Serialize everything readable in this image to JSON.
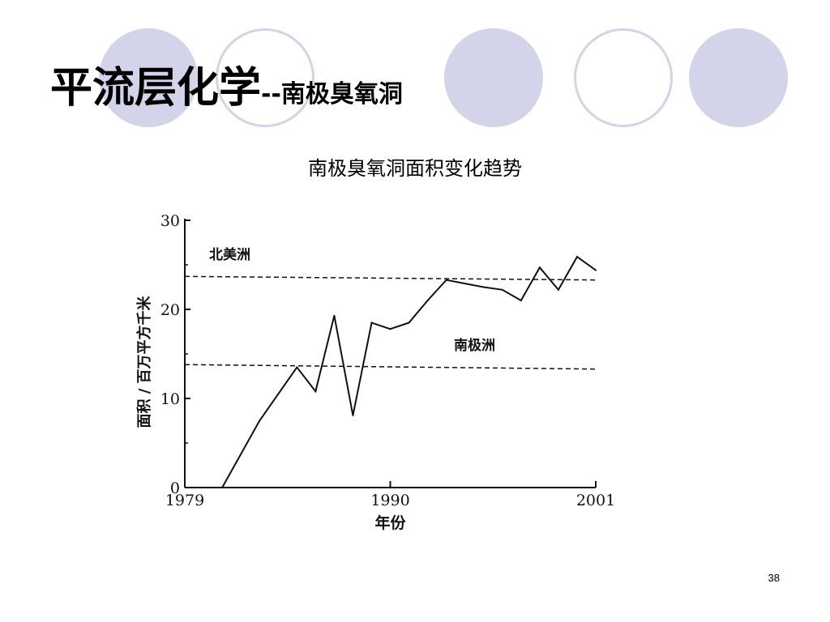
{
  "slide": {
    "title_main": "平流层化学",
    "title_separator": "--",
    "title_sub": "南极臭氧洞",
    "caption": "南极臭氧洞面积变化趋势",
    "page_number": "38"
  },
  "colors": {
    "decoration_fill": "#d3d3ea",
    "decoration_ring": "#d3d3ea",
    "ink": "#111111"
  },
  "chart_data": {
    "type": "line",
    "title": "",
    "xlabel": "年份",
    "ylabel": "面积 / 百万平方千米",
    "xlim": [
      1979,
      2001
    ],
    "ylim": [
      0,
      30
    ],
    "xticks": [
      1979,
      1990,
      2001
    ],
    "yticks": [
      0,
      10,
      20,
      30
    ],
    "grid": false,
    "series": [
      {
        "x": [
          1981,
          1983,
          1985,
          1986,
          1987,
          1988,
          1989,
          1990,
          1991,
          1992,
          1993,
          1994,
          1995,
          1996,
          1997,
          1998,
          1999,
          2000,
          2001
        ],
        "y": [
          0,
          7.5,
          13.5,
          10.8,
          19.3,
          8.1,
          18.5,
          17.8,
          18.5,
          21.0,
          23.3,
          22.9,
          22.5,
          22.2,
          21.0,
          24.7,
          22.2,
          25.9,
          24.4
        ]
      }
    ],
    "reference_lines": [
      {
        "label": "北美洲",
        "y_start": 23.7,
        "y_end": 23.3,
        "style": "dashed"
      },
      {
        "label": "南极洲",
        "y_start": 13.8,
        "y_end": 13.3,
        "style": "dashed"
      }
    ]
  }
}
